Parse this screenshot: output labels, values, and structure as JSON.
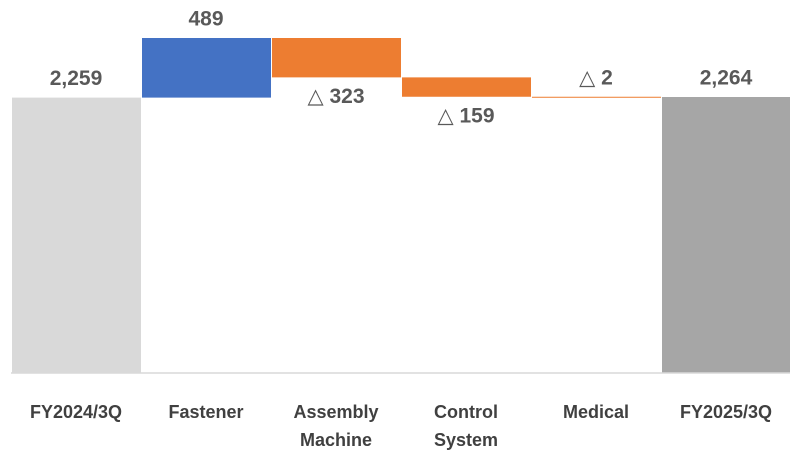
{
  "chart_data": {
    "type": "waterfall",
    "categories": [
      "FY2024/3Q",
      "Fastener",
      "Assembly Machine",
      "Control System",
      "Medical",
      "FY2025/3Q"
    ],
    "values": [
      2259,
      489,
      -323,
      -159,
      -2,
      2264
    ],
    "value_labels": [
      "2,259",
      "489",
      "△ 323",
      "△ 159",
      "△ 2",
      "2,264"
    ],
    "colors": [
      "#d9d9d9",
      "#4472c4",
      "#ed7d31",
      "#ed7d31",
      "#ed7d31",
      "#a6a6a6"
    ]
  }
}
